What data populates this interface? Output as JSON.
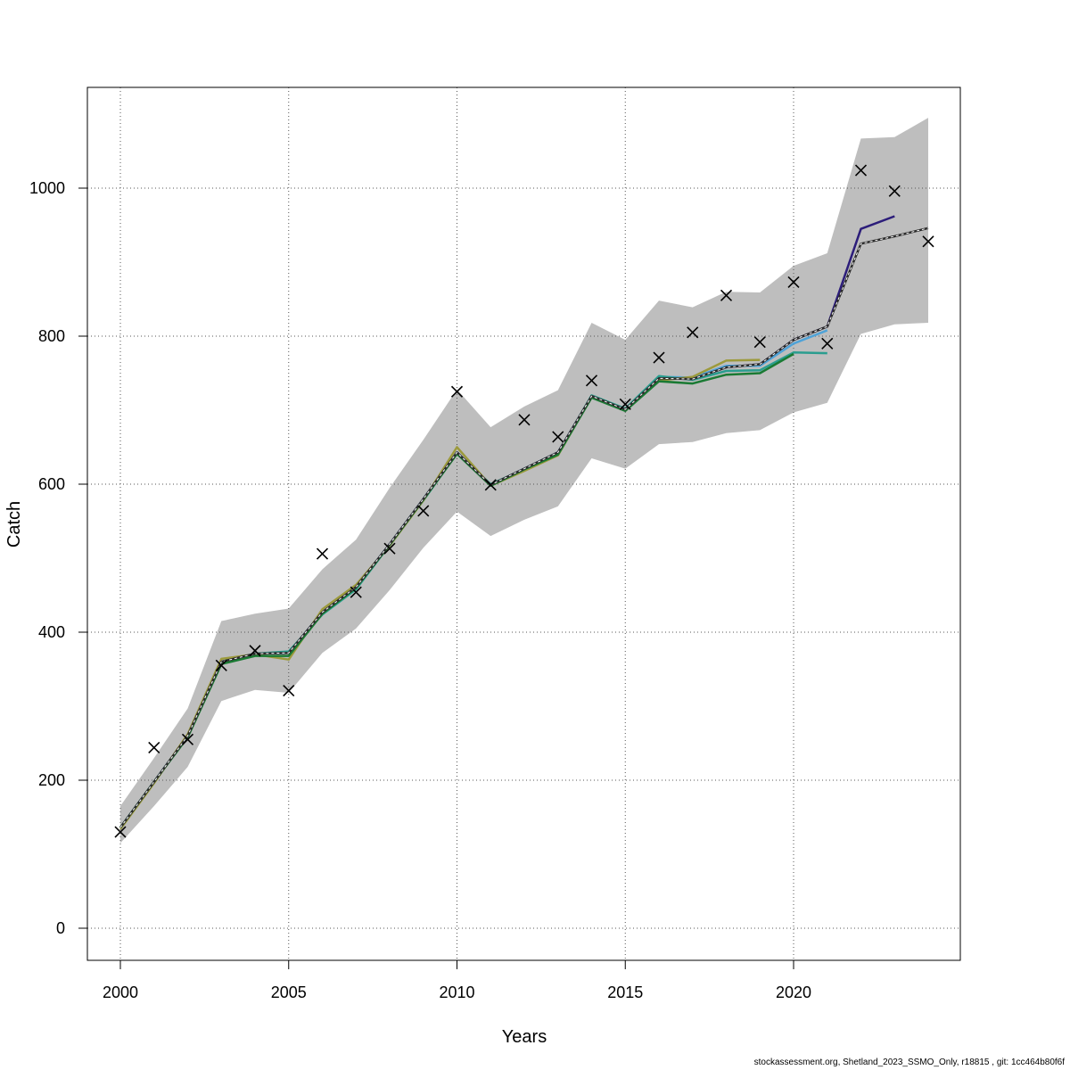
{
  "chart_data": {
    "type": "line",
    "xlabel": "Years",
    "ylabel": "Catch",
    "xlim": [
      2000,
      2024
    ],
    "ylim": [
      0,
      1100
    ],
    "xticks": [
      2000,
      2005,
      2010,
      2015,
      2020
    ],
    "yticks": [
      0,
      200,
      400,
      600,
      800,
      1000
    ],
    "grid": true,
    "band_color": "#bebebe",
    "band": {
      "x": [
        2000,
        2001,
        2002,
        2003,
        2004,
        2005,
        2006,
        2007,
        2008,
        2009,
        2010,
        2011,
        2012,
        2013,
        2014,
        2015,
        2016,
        2017,
        2018,
        2019,
        2020,
        2021,
        2022,
        2023,
        2024
      ],
      "lower": [
        115,
        165,
        218,
        307,
        322,
        318,
        372,
        405,
        457,
        514,
        563,
        530,
        552,
        570,
        635,
        621,
        654,
        657,
        669,
        673,
        697,
        710,
        803,
        816,
        818
      ],
      "upper": [
        165,
        230,
        297,
        415,
        425,
        432,
        485,
        525,
        595,
        660,
        728,
        677,
        705,
        727,
        818,
        795,
        848,
        839,
        860,
        859,
        895,
        912,
        1067,
        1069,
        1095
      ]
    },
    "observed": {
      "x": [
        2000,
        2001,
        2002,
        2003,
        2004,
        2005,
        2006,
        2007,
        2008,
        2009,
        2010,
        2011,
        2012,
        2013,
        2014,
        2015,
        2016,
        2017,
        2018,
        2019,
        2020,
        2021,
        2022,
        2023,
        2024
      ],
      "y": [
        130,
        244,
        255,
        355,
        375,
        321,
        506,
        454,
        513,
        564,
        725,
        599,
        687,
        664,
        740,
        708,
        771,
        805,
        855,
        792,
        873,
        790,
        1024,
        996,
        928
      ]
    },
    "series": [
      {
        "color": "#2b2b2b",
        "dashed": true,
        "width": 2.5,
        "x": [
          2000,
          2001,
          2002,
          2003,
          2004,
          2005,
          2006,
          2007,
          2008,
          2009,
          2010,
          2011,
          2012,
          2013,
          2014,
          2015,
          2016,
          2017,
          2018,
          2019,
          2020,
          2021,
          2022,
          2023,
          2024
        ],
        "y": [
          136,
          198,
          260,
          360,
          371,
          372,
          427,
          461,
          519,
          580,
          643,
          599,
          621,
          643,
          719,
          701,
          743,
          742,
          758,
          762,
          795,
          813,
          925,
          935,
          946
        ]
      },
      {
        "color": "#2c1d7a",
        "x": [
          2000,
          2001,
          2002,
          2003,
          2004,
          2005,
          2006,
          2007,
          2008,
          2009,
          2010,
          2011,
          2012,
          2013,
          2014,
          2015,
          2016,
          2017,
          2018,
          2019,
          2020,
          2021,
          2022,
          2023
        ],
        "y": [
          136,
          198,
          260,
          360,
          371,
          372,
          427,
          461,
          519,
          580,
          643,
          599,
          621,
          643,
          719,
          701,
          743,
          742,
          758,
          762,
          795,
          813,
          945,
          962
        ]
      },
      {
        "color": "#4fa3d8",
        "x": [
          2000,
          2001,
          2002,
          2003,
          2004,
          2005,
          2006,
          2007,
          2008,
          2009,
          2010,
          2011,
          2012,
          2013,
          2014,
          2015,
          2016,
          2017,
          2018,
          2019,
          2020,
          2021
        ],
        "y": [
          136,
          198,
          260,
          360,
          371,
          372,
          427,
          461,
          519,
          580,
          643,
          599,
          621,
          643,
          719,
          701,
          745,
          744,
          760,
          760,
          790,
          808
        ]
      },
      {
        "color": "#2a9d8f",
        "x": [
          2000,
          2001,
          2002,
          2003,
          2004,
          2005,
          2006,
          2007,
          2008,
          2009,
          2010,
          2011,
          2012,
          2013,
          2014,
          2015,
          2016,
          2017,
          2018,
          2019,
          2020,
          2021
        ],
        "y": [
          136,
          198,
          260,
          360,
          371,
          374,
          424,
          458,
          518,
          578,
          642,
          600,
          620,
          641,
          720,
          702,
          746,
          741,
          753,
          754,
          778,
          777
        ]
      },
      {
        "color": "#9c9a3c",
        "x": [
          2000,
          2001,
          2002,
          2003,
          2004,
          2005,
          2006,
          2007,
          2008,
          2009,
          2010,
          2011,
          2012,
          2013,
          2014,
          2015,
          2016,
          2017,
          2018,
          2019
        ],
        "y": [
          134,
          196,
          262,
          364,
          370,
          363,
          431,
          464,
          517,
          578,
          650,
          598,
          618,
          639,
          718,
          700,
          740,
          745,
          767,
          768
        ]
      },
      {
        "color": "#1a7a33",
        "x": [
          2000,
          2001,
          2002,
          2003,
          2004,
          2005,
          2006,
          2007,
          2008,
          2009,
          2010,
          2011,
          2012,
          2013,
          2014,
          2015,
          2016,
          2017,
          2018,
          2019,
          2020
        ],
        "y": [
          136,
          198,
          258,
          357,
          368,
          368,
          425,
          460,
          518,
          579,
          641,
          598,
          620,
          640,
          717,
          699,
          739,
          736,
          748,
          750,
          776
        ]
      }
    ]
  },
  "footer": "stockassessment.org, Shetland_2023_SSMO_Only, r18815 , git: 1cc464b80f6f"
}
